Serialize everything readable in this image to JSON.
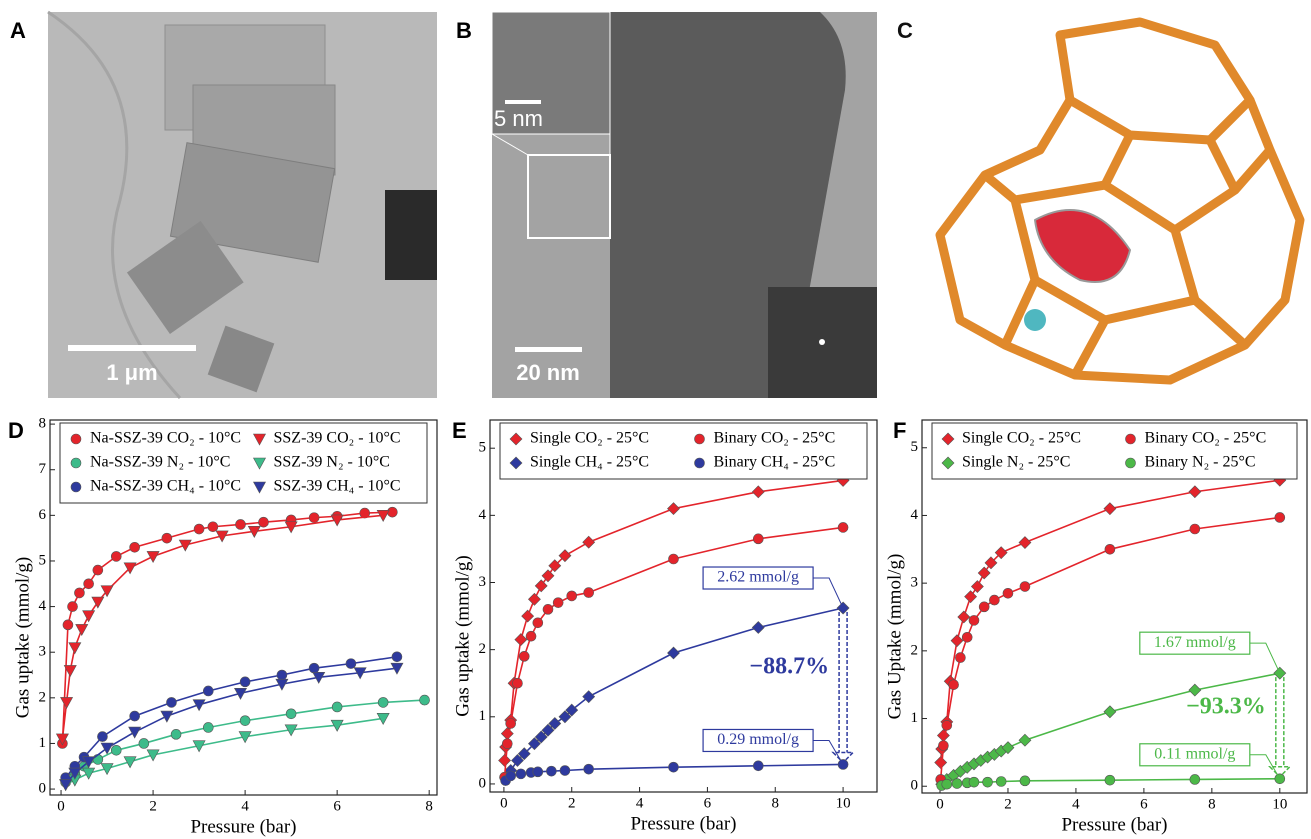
{
  "panels": {
    "A": {
      "label": "A",
      "scale_bar": "1 μm"
    },
    "B": {
      "label": "B",
      "scale_bar": "20 nm",
      "inset_scale_bar": "5 nm"
    },
    "C": {
      "label": "C"
    }
  },
  "chart_data": [
    {
      "type": "scatter",
      "panel": "D",
      "x_label": "Pressure (bar)",
      "y_label": "Gas uptake (mmol/g)",
      "xlim": [
        -0.24,
        8.17
      ],
      "ylim": [
        -0.13,
        8.09
      ],
      "xticks": [
        0,
        2,
        4,
        6,
        8
      ],
      "yticks": [
        0,
        1,
        2,
        3,
        4,
        5,
        6,
        7,
        8
      ],
      "grid": false,
      "series": [
        {
          "name": "Na-SSZ-39 CO₂ - 10°C",
          "color": "#e3242b",
          "marker": "circle",
          "x": [
            0.03,
            0.15,
            0.25,
            0.4,
            0.6,
            0.8,
            1.2,
            1.6,
            2.3,
            3.0,
            3.3,
            3.9,
            4.4,
            5.0,
            5.5,
            6.0,
            6.6,
            7.2
          ],
          "values": [
            1.0,
            3.6,
            4.0,
            4.3,
            4.5,
            4.8,
            5.1,
            5.3,
            5.5,
            5.7,
            5.75,
            5.8,
            5.85,
            5.9,
            5.95,
            5.98,
            6.05,
            6.07
          ]
        },
        {
          "name": "Na-SSZ-39 N₂   - 10°C",
          "color": "#3dbb8a",
          "marker": "circle",
          "x": [
            0.1,
            0.3,
            0.5,
            0.8,
            1.2,
            1.8,
            2.5,
            3.2,
            4.0,
            5.0,
            6.0,
            7.0,
            7.9
          ],
          "values": [
            0.15,
            0.35,
            0.5,
            0.65,
            0.85,
            1.0,
            1.2,
            1.35,
            1.5,
            1.65,
            1.8,
            1.9,
            1.95
          ]
        },
        {
          "name": "Na-SSZ-39 CH₄ - 10°C",
          "color": "#2e3a9e",
          "marker": "circle",
          "x": [
            0.1,
            0.3,
            0.5,
            0.9,
            1.6,
            2.4,
            3.2,
            4.0,
            4.8,
            5.5,
            6.3,
            7.3
          ],
          "values": [
            0.25,
            0.5,
            0.7,
            1.15,
            1.6,
            1.9,
            2.15,
            2.35,
            2.5,
            2.65,
            2.75,
            2.9
          ]
        },
        {
          "name": "SSZ-39 CO₂ - 10°C",
          "color": "#e3242b",
          "marker": "triangle",
          "x": [
            0.03,
            0.12,
            0.2,
            0.3,
            0.45,
            0.6,
            0.8,
            1.0,
            1.5,
            2.0,
            2.7,
            3.5,
            4.2,
            5.0,
            6.0,
            7.0
          ],
          "values": [
            1.1,
            1.9,
            2.6,
            3.1,
            3.5,
            3.8,
            4.1,
            4.35,
            4.85,
            5.1,
            5.35,
            5.55,
            5.65,
            5.75,
            5.9,
            6.0
          ]
        },
        {
          "name": "SSZ-39 N₂   - 10°C",
          "color": "#3dbb8a",
          "marker": "triangle",
          "x": [
            0.1,
            0.3,
            0.6,
            1.0,
            1.5,
            2.0,
            3.0,
            4.0,
            5.0,
            6.0,
            7.0
          ],
          "values": [
            0.1,
            0.2,
            0.35,
            0.45,
            0.6,
            0.75,
            0.95,
            1.15,
            1.3,
            1.4,
            1.55
          ]
        },
        {
          "name": "SSZ-39 CH₄ - 10°C",
          "color": "#2e3a9e",
          "marker": "triangle",
          "x": [
            0.1,
            0.3,
            0.6,
            1.0,
            1.6,
            2.3,
            3.0,
            3.9,
            4.8,
            5.6,
            6.5,
            7.3
          ],
          "values": [
            0.1,
            0.35,
            0.6,
            0.9,
            1.25,
            1.6,
            1.85,
            2.1,
            2.3,
            2.45,
            2.55,
            2.65
          ]
        }
      ]
    },
    {
      "type": "scatter",
      "panel": "E",
      "x_label": "Pressure (bar)",
      "y_label": "Gas uptake (mmol/g)",
      "xlim": [
        -0.41,
        11.0
      ],
      "ylim": [
        -0.12,
        5.42
      ],
      "xticks": [
        0,
        2,
        4,
        6,
        8,
        10
      ],
      "yticks": [
        0,
        1,
        2,
        3,
        4,
        5
      ],
      "grid": false,
      "series": [
        {
          "name": "Single CO₂ - 25°C",
          "color": "#e3242b",
          "marker": "diamond",
          "x": [
            0.02,
            0.05,
            0.1,
            0.2,
            0.3,
            0.5,
            0.7,
            0.9,
            1.1,
            1.3,
            1.5,
            1.8,
            2.5,
            5,
            7.5,
            10
          ],
          "values": [
            0.35,
            0.55,
            0.75,
            0.95,
            1.5,
            2.15,
            2.5,
            2.75,
            2.95,
            3.1,
            3.25,
            3.4,
            3.6,
            4.1,
            4.35,
            4.52
          ]
        },
        {
          "name": "Single CH₄ - 25°C",
          "color": "#2e3a9e",
          "marker": "diamond",
          "x": [
            0.05,
            0.2,
            0.4,
            0.6,
            0.9,
            1.1,
            1.3,
            1.5,
            1.8,
            2.0,
            2.5,
            5,
            7.5,
            10
          ],
          "values": [
            0.1,
            0.2,
            0.35,
            0.45,
            0.6,
            0.7,
            0.8,
            0.9,
            1.0,
            1.1,
            1.3,
            1.95,
            2.33,
            2.62
          ]
        },
        {
          "name": "Binary CO₂ - 25°C",
          "color": "#e3242b",
          "marker": "circle",
          "x": [
            0.02,
            0.1,
            0.2,
            0.4,
            0.6,
            0.8,
            1.0,
            1.3,
            1.6,
            2.0,
            2.5,
            5,
            7.5,
            10
          ],
          "values": [
            0.1,
            0.6,
            0.9,
            1.5,
            1.9,
            2.2,
            2.4,
            2.6,
            2.7,
            2.8,
            2.85,
            3.35,
            3.65,
            3.82
          ]
        },
        {
          "name": "Binary CH₄ - 25°C",
          "color": "#2e3a9e",
          "marker": "circle",
          "x": [
            0.05,
            0.2,
            0.5,
            0.8,
            1.0,
            1.4,
            1.8,
            2.5,
            5,
            7.5,
            10
          ],
          "values": [
            0.05,
            0.12,
            0.15,
            0.17,
            0.18,
            0.19,
            0.2,
            0.22,
            0.25,
            0.27,
            0.29
          ]
        }
      ],
      "annotations": [
        {
          "text": "2.62 mmol/g",
          "x": 10,
          "y": 2.62
        },
        {
          "text": "0.29 mmol/g",
          "x": 10,
          "y": 0.29
        }
      ],
      "reduction_label": "−88.7%",
      "annotation_color": "#2e3a9e"
    },
    {
      "type": "scatter",
      "panel": "F",
      "x_label": "Pressure (bar)",
      "y_label": "Gas Uptake (mmol/g)",
      "xlim": [
        -0.53,
        10.8
      ],
      "ylim": [
        -0.1,
        5.41
      ],
      "xticks": [
        0,
        2,
        4,
        6,
        8,
        10
      ],
      "yticks": [
        0,
        1,
        2,
        3,
        4,
        5
      ],
      "grid": false,
      "series": [
        {
          "name": "Single CO₂ - 25°C",
          "color": "#e3242b",
          "marker": "diamond",
          "x": [
            0.02,
            0.05,
            0.1,
            0.2,
            0.3,
            0.5,
            0.7,
            0.9,
            1.1,
            1.3,
            1.5,
            1.8,
            2.5,
            5,
            7.5,
            10
          ],
          "values": [
            0.35,
            0.55,
            0.75,
            0.95,
            1.55,
            2.15,
            2.5,
            2.8,
            2.95,
            3.15,
            3.3,
            3.45,
            3.6,
            4.1,
            4.35,
            4.52
          ]
        },
        {
          "name": "Single N₂   - 25°C",
          "color": "#4cb848",
          "marker": "diamond",
          "x": [
            0.05,
            0.2,
            0.4,
            0.6,
            0.8,
            1.0,
            1.2,
            1.4,
            1.6,
            1.8,
            2.0,
            2.5,
            5,
            7.5,
            10
          ],
          "values": [
            0.03,
            0.1,
            0.16,
            0.22,
            0.28,
            0.33,
            0.38,
            0.43,
            0.47,
            0.52,
            0.57,
            0.68,
            1.1,
            1.42,
            1.67
          ]
        },
        {
          "name": "Binary CO₂ - 25°C",
          "color": "#e3242b",
          "marker": "circle",
          "x": [
            0.02,
            0.1,
            0.2,
            0.4,
            0.6,
            0.8,
            1.0,
            1.3,
            1.6,
            2.0,
            2.5,
            5,
            7.5,
            10
          ],
          "values": [
            0.1,
            0.6,
            0.9,
            1.5,
            1.9,
            2.2,
            2.45,
            2.65,
            2.75,
            2.85,
            2.95,
            3.5,
            3.8,
            3.97
          ]
        },
        {
          "name": "Binary N₂   - 25°C",
          "color": "#4cb848",
          "marker": "circle",
          "x": [
            0.05,
            0.2,
            0.5,
            0.8,
            1.0,
            1.4,
            1.8,
            2.5,
            5,
            7.5,
            10
          ],
          "values": [
            0.01,
            0.03,
            0.04,
            0.05,
            0.06,
            0.06,
            0.07,
            0.08,
            0.09,
            0.1,
            0.11
          ]
        }
      ],
      "annotations": [
        {
          "text": "1.67 mmol/g",
          "x": 10,
          "y": 1.67
        },
        {
          "text": "0.11 mmol/g",
          "x": 10,
          "y": 0.11
        }
      ],
      "reduction_label": "−93.3%",
      "annotation_color": "#4cb848"
    }
  ]
}
